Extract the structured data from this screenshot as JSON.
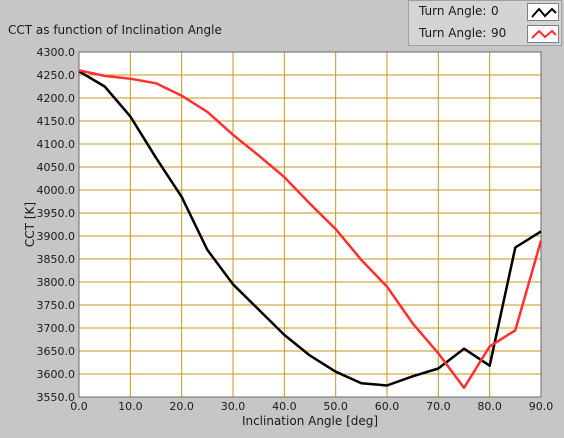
{
  "chart_data": {
    "type": "line",
    "title": "CCT as function of Inclination Angle",
    "xlabel": "Inclination Angle [deg]",
    "ylabel": "CCT [K]",
    "xlim": [
      0,
      90
    ],
    "ylim": [
      3550,
      4300
    ],
    "grid": true,
    "legend_position": "top-right",
    "x_ticks": [
      "0.0",
      "10.0",
      "20.0",
      "30.0",
      "40.0",
      "50.0",
      "60.0",
      "70.0",
      "80.0",
      "90.0"
    ],
    "y_ticks": [
      "3550.0",
      "3600.0",
      "3650.0",
      "3700.0",
      "3750.0",
      "3800.0",
      "3850.0",
      "3900.0",
      "3950.0",
      "4000.0",
      "4050.0",
      "4100.0",
      "4150.0",
      "4200.0",
      "4250.0",
      "4300.0"
    ],
    "series": [
      {
        "name": "Turn Angle:",
        "value_label": "0",
        "color": "#000000",
        "x": [
          0,
          5,
          10,
          15,
          20,
          25,
          30,
          35,
          40,
          45,
          50,
          55,
          60,
          65,
          70,
          75,
          80,
          85,
          90
        ],
        "values": [
          4258,
          4225,
          4160,
          4070,
          3985,
          3870,
          3795,
          3740,
          3685,
          3640,
          3605,
          3580,
          3575,
          3595,
          3612,
          3655,
          3618,
          3875,
          3910
        ]
      },
      {
        "name": "Turn Angle:",
        "value_label": "90",
        "color": "#ff3030",
        "x": [
          0,
          5,
          10,
          15,
          20,
          25,
          30,
          35,
          40,
          45,
          50,
          55,
          60,
          65,
          70,
          75,
          80,
          85,
          90
        ],
        "values": [
          4260,
          4248,
          4242,
          4232,
          4205,
          4170,
          4120,
          4075,
          4028,
          3970,
          3915,
          3848,
          3790,
          3710,
          3645,
          3570,
          3660,
          3695,
          3890
        ]
      }
    ]
  }
}
